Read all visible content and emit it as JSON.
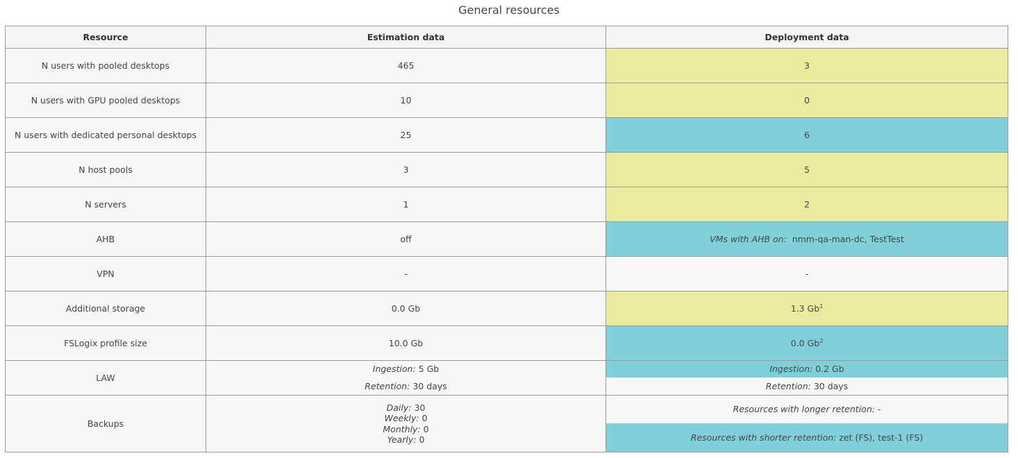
{
  "title": "General resources",
  "headers": {
    "resource": "Resource",
    "estimation": "Estimation data",
    "deployment": "Deployment data"
  },
  "rows": [
    {
      "resource": "N users with pooled desktops",
      "estimation": "465",
      "deployment": "3",
      "color": "#ebeb9e"
    },
    {
      "resource": "N users with GPU pooled desktops",
      "estimation": "10",
      "deployment": "0",
      "color": "#ebeb9e"
    },
    {
      "resource": "N users with dedicated personal desktops",
      "estimation": "25",
      "deployment": "6",
      "color": "#80d0da"
    },
    {
      "resource": "N host pools",
      "estimation": "3",
      "deployment": "5",
      "color": "#ebeb9e"
    },
    {
      "resource": "N servers",
      "estimation": "1",
      "deployment": "2",
      "color": "#ebeb9e"
    }
  ],
  "ahb": {
    "resource": "AHB",
    "estimation": "off",
    "deployment_label": "VMs with AHB on:",
    "deployment_value": "nmm-qa-man-dc, TestTest"
  },
  "vpn": {
    "resource": "VPN",
    "estimation": "-",
    "deployment": "-"
  },
  "storage": {
    "resource": "Additional storage",
    "estimation": "0.0 Gb",
    "deployment": "1.3 Gb",
    "sup": "1"
  },
  "fslogix": {
    "resource": "FSLogix profile size",
    "estimation": "10.0 Gb",
    "deployment": "0.0 Gb",
    "sup": "2"
  },
  "law": {
    "resource": "LAW",
    "est_ingestion_label": "Ingestion:",
    "est_ingestion": "5 Gb",
    "est_retention_label": "Retention:",
    "est_retention": "30 days",
    "dep_ingestion_label": "Ingestion:",
    "dep_ingestion": "0.2 Gb",
    "dep_retention_label": "Retention:",
    "dep_retention": "30 days"
  },
  "backups": {
    "resource": "Backups",
    "daily_label": "Daily:",
    "daily": "30",
    "weekly_label": "Weekly:",
    "weekly": "0",
    "monthly_label": "Monthly:",
    "monthly": "0",
    "yearly_label": "Yearly:",
    "yearly": "0",
    "longer_label": "Resources with longer retention:",
    "longer": "-",
    "shorter_label": "Resources with shorter retention:",
    "shorter": "zet (FS), test-1 (FS)"
  },
  "colors": {
    "yellow": "#ebeb9e",
    "cyan": "#80d0da"
  }
}
